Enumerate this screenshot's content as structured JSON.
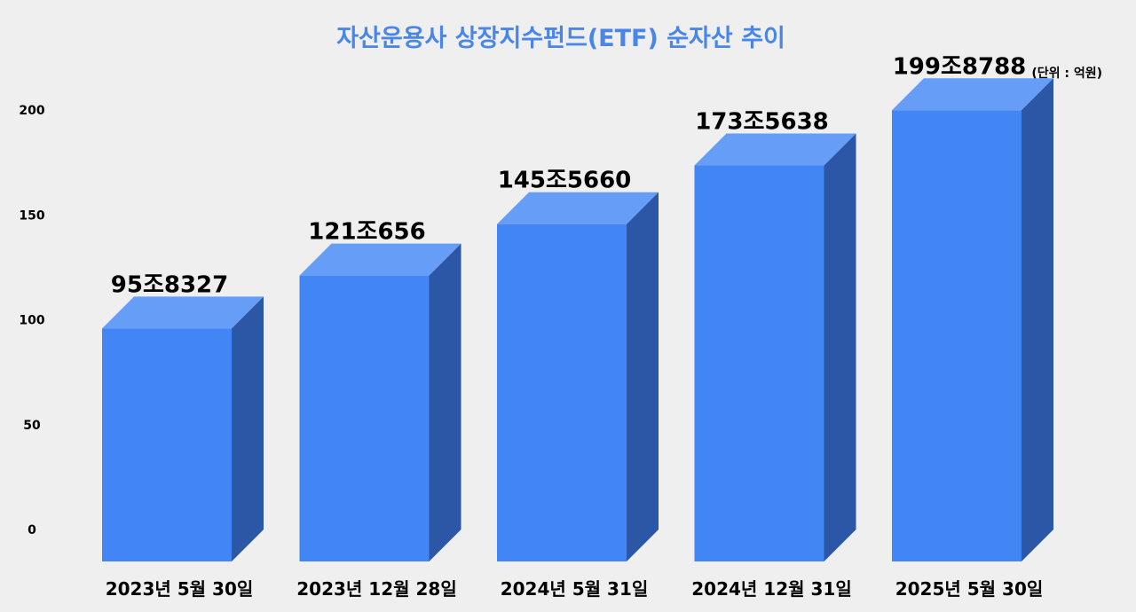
{
  "chart_data": {
    "type": "bar",
    "title": "자산운용사 상장지수펀드(ETF) 순자산 추이",
    "unit_note": "(단위 : 억원)",
    "categories": [
      "2023년 5월 30일",
      "2023년 12월 28일",
      "2024년 5월 31일",
      "2024년 12월 31일",
      "2025년 5월 30일"
    ],
    "values": [
      95.8327,
      121.0656,
      145.566,
      173.5638,
      199.8788
    ],
    "data_labels": [
      "95조8327",
      "121조656",
      "145조5660",
      "173조5638",
      "199조8788"
    ],
    "yticks": [
      "0",
      "50",
      "100",
      "150",
      "200"
    ],
    "ylim": [
      0,
      200
    ],
    "grid": false,
    "colors": {
      "front": "#4285f4",
      "top": "#669df6",
      "side": "#2c56a6",
      "title": "#4a86e8"
    }
  }
}
